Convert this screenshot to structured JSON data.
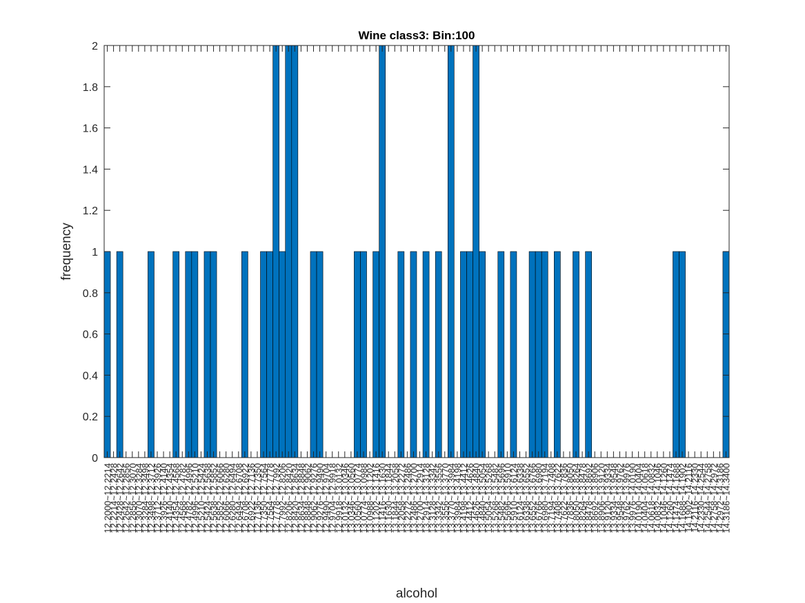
{
  "chart_data": {
    "type": "bar",
    "title": "Wine class3: Bin:100",
    "xlabel": "alcohol",
    "ylabel": "frequency",
    "ylim": [
      0,
      2
    ],
    "yticks": [
      "0",
      "0.2",
      "0.4",
      "0.6",
      "0.8",
      "1",
      "1.2",
      "1.4",
      "1.6",
      "1.8",
      "2"
    ],
    "bar_color": "#0072BD",
    "bin_start": 12.2,
    "bin_end": 14.34,
    "bin_count": 100,
    "values": [
      1,
      0,
      1,
      0,
      0,
      0,
      0,
      1,
      0,
      0,
      0,
      1,
      0,
      1,
      1,
      0,
      1,
      1,
      0,
      0,
      0,
      0,
      1,
      0,
      0,
      1,
      1,
      2,
      1,
      2,
      2,
      0,
      0,
      1,
      1,
      0,
      0,
      0,
      0,
      0,
      1,
      1,
      0,
      1,
      2,
      0,
      0,
      1,
      0,
      1,
      0,
      1,
      0,
      1,
      0,
      2,
      0,
      1,
      1,
      2,
      1,
      0,
      0,
      1,
      0,
      1,
      0,
      0,
      1,
      1,
      1,
      0,
      1,
      0,
      0,
      1,
      0,
      1,
      0,
      0,
      0,
      0,
      0,
      0,
      0,
      0,
      0,
      0,
      0,
      0,
      0,
      1,
      1,
      0,
      0,
      0,
      0,
      0,
      0,
      1
    ],
    "categories": [
      "12.2000~12.2214",
      "12.2214~12.2428",
      "12.2428~12.2642",
      "12.2642~12.2856",
      "12.2856~12.3070",
      "12.3070~12.3284",
      "12.3284~12.3498",
      "12.3498~12.3712",
      "12.3712~12.3926",
      "12.3926~12.4140",
      "12.4140~12.4354",
      "12.4354~12.4568",
      "12.4568~12.4782",
      "12.4782~12.4996",
      "12.4996~12.5210",
      "12.5210~12.5424",
      "12.5424~12.5638",
      "12.5638~12.5852",
      "12.5852~12.6066",
      "12.6066~12.6280",
      "12.6280~12.6494",
      "12.6494~12.6708",
      "12.6708~12.6922",
      "12.6922~12.7136",
      "12.7136~12.7350",
      "12.7350~12.7564",
      "12.7564~12.7778",
      "12.7778~12.7992",
      "12.7992~12.8206",
      "12.8206~12.8420",
      "12.8420~12.8634",
      "12.8634~12.8848",
      "12.8848~12.9062",
      "12.9062~12.9276",
      "12.9276~12.9490",
      "12.9490~12.9704",
      "12.9704~12.9918",
      "12.9918~13.0132",
      "13.0132~13.0346",
      "13.0346~13.0560",
      "13.0560~13.0774",
      "13.0774~13.0988",
      "13.0988~13.1202",
      "13.1202~13.1416",
      "13.1416~13.1630",
      "13.1630~13.1844",
      "13.1844~13.2058",
      "13.2058~13.2272",
      "13.2272~13.2486",
      "13.2486~13.2700",
      "13.2700~13.2914",
      "13.2914~13.3128",
      "13.3128~13.3342",
      "13.3342~13.3556",
      "13.3556~13.3770",
      "13.3770~13.3984",
      "13.3984~13.4198",
      "13.4198~13.4412",
      "13.4412~13.4626",
      "13.4626~13.4840",
      "13.4840~13.5054",
      "13.5054~13.5268",
      "13.5268~13.5482",
      "13.5482~13.5696",
      "13.5696~13.5910",
      "13.5910~13.6124",
      "13.6124~13.6338",
      "13.6338~13.6552",
      "13.6552~13.6766",
      "13.6766~13.6980",
      "13.6980~13.7194",
      "13.7194~13.7408",
      "13.7408~13.7622",
      "13.7622~13.7836",
      "13.7836~13.8050",
      "13.8050~13.8264",
      "13.8264~13.8478",
      "13.8478~13.8692",
      "13.8692~13.8906",
      "13.8906~13.9120",
      "13.9120~13.9334",
      "13.9334~13.9548",
      "13.9548~13.9762",
      "13.9762~13.9976",
      "13.9976~14.0190",
      "14.0190~14.0404",
      "14.0404~14.0618",
      "14.0618~14.0832",
      "14.0832~14.1046",
      "14.1046~14.1260",
      "14.1260~14.1474",
      "14.1474~14.1688",
      "14.1688~14.1902",
      "14.1902~14.2116",
      "14.2116~14.2330",
      "14.2330~14.2544",
      "14.2544~14.2758",
      "14.2758~14.2972",
      "14.2972~14.3186",
      "14.3186~14.3400"
    ]
  }
}
